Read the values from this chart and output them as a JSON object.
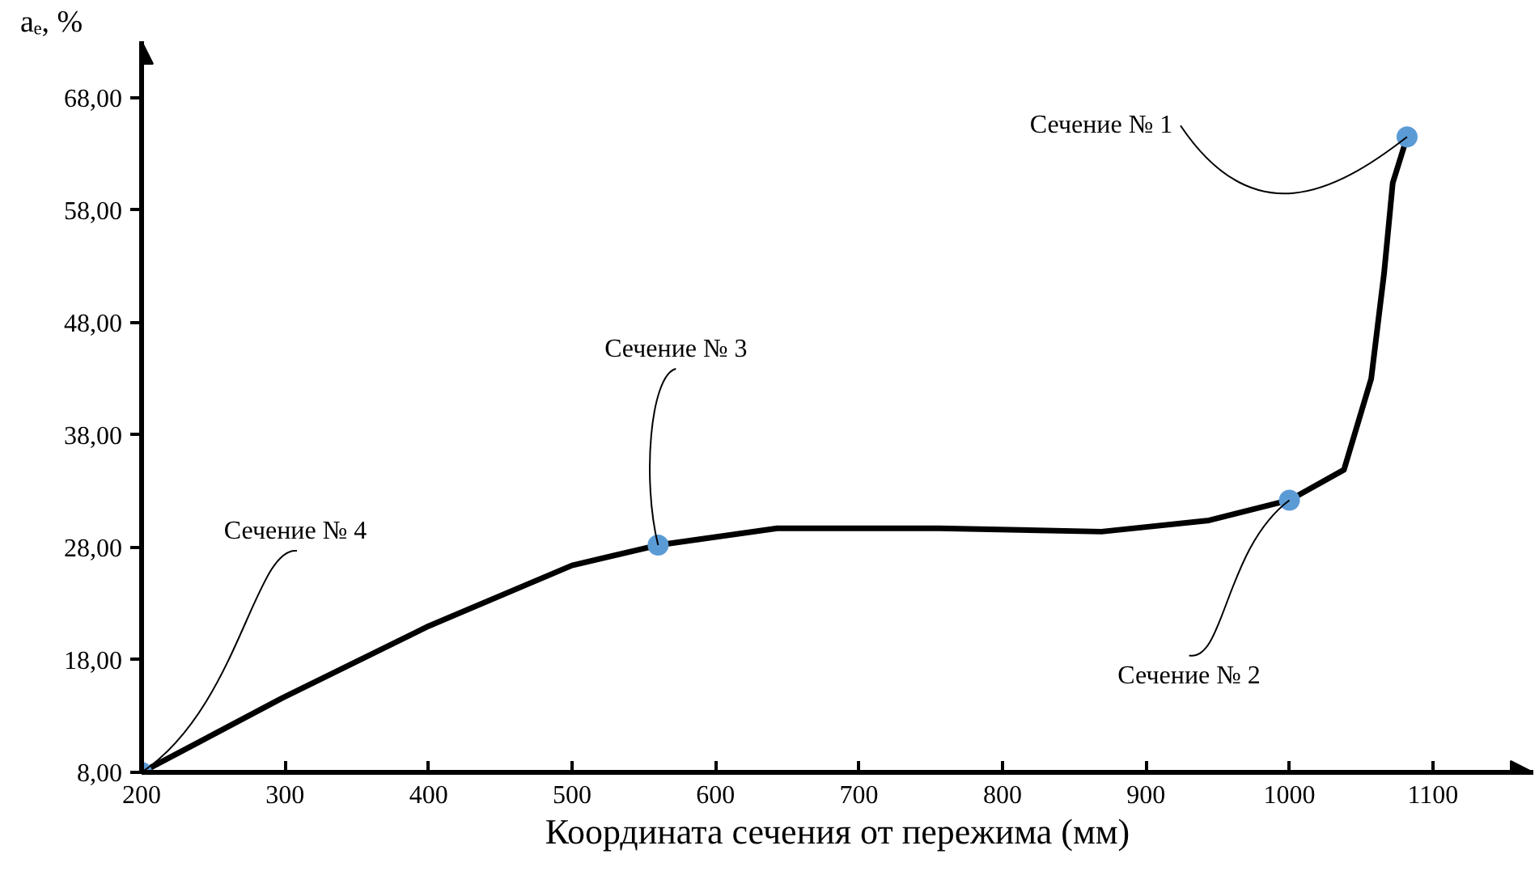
{
  "chart_data": {
    "type": "line",
    "xlabel": "Координата сечения от пережима (мм)",
    "ylabel": "aₑ, %",
    "xlim": [
      200,
      1170
    ],
    "ylim": [
      8,
      73
    ],
    "xticks": [
      200,
      300,
      400,
      500,
      600,
      700,
      800,
      900,
      1000,
      1100
    ],
    "yticks": [
      {
        "value": 8,
        "label": "8,00"
      },
      {
        "value": 18,
        "label": "18,00"
      },
      {
        "value": 28,
        "label": "28,00"
      },
      {
        "value": 38,
        "label": "38,00"
      },
      {
        "value": 48,
        "label": "48,00"
      },
      {
        "value": 58,
        "label": "58,00"
      },
      {
        "value": 68,
        "label": "68,00"
      }
    ],
    "grid": false,
    "series": [
      {
        "color": "#000000",
        "x": [
          200,
          298,
          400,
          500,
          560,
          643,
          756,
          869,
          944,
          1000,
          1038,
          1057,
          1066,
          1072,
          1082
        ],
        "values": [
          8.0,
          14.6,
          21.0,
          26.4,
          28.2,
          29.7,
          29.7,
          29.4,
          30.4,
          32.2,
          34.9,
          43.0,
          52.4,
          60.4,
          64.5
        ]
      },
      {
        "type": "scatter",
        "marker": "circle",
        "color": "#5b9bd5",
        "x": [
          200,
          560,
          1000,
          1082
        ],
        "values": [
          8.0,
          28.2,
          32.2,
          64.5
        ]
      }
    ],
    "annotations": [
      {
        "text": "Сечение № 1",
        "x": 1082,
        "y": 64.5
      },
      {
        "text": "Сечение № 2",
        "x": 1000,
        "y": 32.2
      },
      {
        "text": "Сечение № 3",
        "x": 560,
        "y": 28.2
      },
      {
        "text": "Сечение № 4",
        "x": 200,
        "y": 8.0
      }
    ]
  }
}
